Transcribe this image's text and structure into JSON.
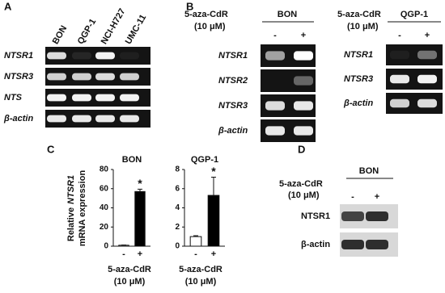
{
  "panels": {
    "A": {
      "label": "A",
      "lanes": [
        "BON",
        "QGP-1",
        "NCI-H727",
        "UMC-11"
      ],
      "genes": [
        "NTSR1",
        "NTSR3",
        "NTS",
        "β-actin"
      ]
    },
    "B": {
      "label": "B",
      "blots": [
        {
          "treatment": "5-aza-CdR",
          "dose": "(10 μM)",
          "cell_line": "BON",
          "lanes": [
            "-",
            "+"
          ],
          "genes": [
            "NTSR1",
            "NTSR2",
            "NTSR3",
            "β-actin"
          ]
        },
        {
          "treatment": "5-aza-CdR",
          "dose": "(10 μM)",
          "cell_line": "QGP-1",
          "lanes": [
            "-",
            "+"
          ],
          "genes": [
            "NTSR1",
            "NTSR3",
            "β-actin"
          ]
        }
      ]
    },
    "C": {
      "label": "C"
    },
    "D": {
      "label": "D",
      "treatment": "5-aza-CdR",
      "dose": "(10 μM)",
      "cell_line": "BON",
      "lanes": [
        "-",
        "+"
      ],
      "proteins": [
        "NTSR1",
        "β-actin"
      ]
    }
  },
  "chart_data": [
    {
      "type": "bar",
      "title": "BON",
      "ylabel": [
        "Relative",
        "NTSR1",
        "mRNA expression"
      ],
      "categories": [
        "-",
        "+"
      ],
      "values": [
        1,
        57
      ],
      "errors": [
        0.3,
        2.5
      ],
      "colors": [
        "#ffffff",
        "#000000"
      ],
      "ylim": [
        0,
        80
      ],
      "yticks": [
        0,
        20,
        40,
        60,
        80
      ],
      "significance": "*",
      "xlabel": [
        "5-aza-CdR",
        "(10 μM)"
      ]
    },
    {
      "type": "bar",
      "title": "QGP-1",
      "categories": [
        "-",
        "+"
      ],
      "values": [
        1,
        5.3
      ],
      "errors": [
        0.1,
        1.9
      ],
      "colors": [
        "#ffffff",
        "#000000"
      ],
      "ylim": [
        0,
        8
      ],
      "yticks": [
        0,
        2,
        4,
        6,
        8
      ],
      "significance": "*",
      "xlabel": [
        "5-aza-CdR",
        "(10 μM)"
      ]
    }
  ]
}
